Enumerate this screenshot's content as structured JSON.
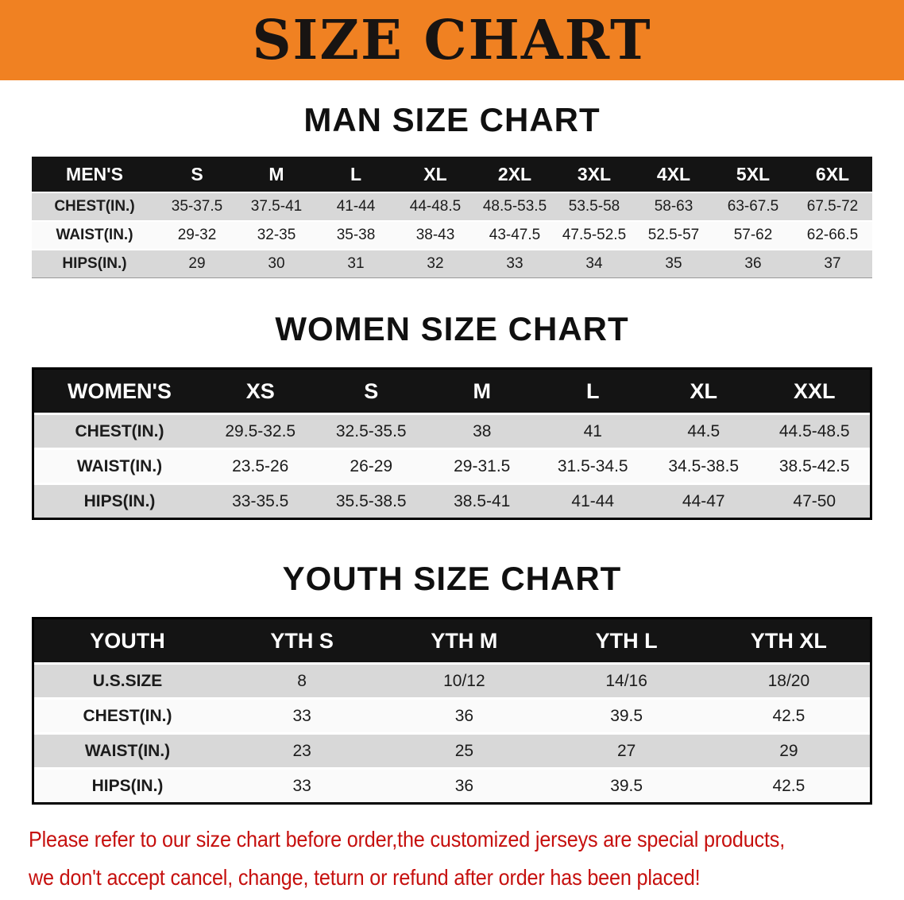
{
  "banner": {
    "title": "SIZE CHART"
  },
  "chart_data": [
    {
      "type": "table",
      "title": "MAN SIZE CHART",
      "header": [
        "MEN'S",
        "S",
        "M",
        "L",
        "XL",
        "2XL",
        "3XL",
        "4XL",
        "5XL",
        "6XL"
      ],
      "rows": [
        {
          "label": "CHEST(IN.)",
          "values": [
            "35-37.5",
            "37.5-41",
            "41-44",
            "44-48.5",
            "48.5-53.5",
            "53.5-58",
            "58-63",
            "63-67.5",
            "67.5-72"
          ]
        },
        {
          "label": "WAIST(IN.)",
          "values": [
            "29-32",
            "32-35",
            "35-38",
            "38-43",
            "43-47.5",
            "47.5-52.5",
            "52.5-57",
            "57-62",
            "62-66.5"
          ]
        },
        {
          "label": "HIPS(IN.)",
          "values": [
            "29",
            "30",
            "31",
            "32",
            "33",
            "34",
            "35",
            "36",
            "37"
          ]
        }
      ]
    },
    {
      "type": "table",
      "title": "WOMEN SIZE CHART",
      "header": [
        "WOMEN'S",
        "XS",
        "S",
        "M",
        "L",
        "XL",
        "XXL"
      ],
      "rows": [
        {
          "label": "CHEST(IN.)",
          "values": [
            "29.5-32.5",
            "32.5-35.5",
            "38",
            "41",
            "44.5",
            "44.5-48.5"
          ]
        },
        {
          "label": "WAIST(IN.)",
          "values": [
            "23.5-26",
            "26-29",
            "29-31.5",
            "31.5-34.5",
            "34.5-38.5",
            "38.5-42.5"
          ]
        },
        {
          "label": "HIPS(IN.)",
          "values": [
            "33-35.5",
            "35.5-38.5",
            "38.5-41",
            "41-44",
            "44-47",
            "47-50"
          ]
        }
      ]
    },
    {
      "type": "table",
      "title": "YOUTH SIZE CHART",
      "header": [
        "YOUTH",
        "YTH S",
        "YTH M",
        "YTH L",
        "YTH XL"
      ],
      "rows": [
        {
          "label": "U.S.SIZE",
          "values": [
            "8",
            "10/12",
            "14/16",
            "18/20"
          ]
        },
        {
          "label": "CHEST(IN.)",
          "values": [
            "33",
            "36",
            "39.5",
            "42.5"
          ]
        },
        {
          "label": "WAIST(IN.)",
          "values": [
            "23",
            "25",
            "27",
            "29"
          ]
        },
        {
          "label": "HIPS(IN.)",
          "values": [
            "33",
            "36",
            "39.5",
            "42.5"
          ]
        }
      ]
    }
  ],
  "disclaimer": {
    "line1": "Please refer to our size chart before order,the customized jerseys are special products,",
    "line2": "we don't accept cancel, change, teturn or refund after order has been placed!"
  },
  "colors": {
    "banner_bg": "#f08122",
    "table_header_bg": "#141414",
    "row_gray": "#d8d8d8",
    "row_light": "#fafafa",
    "table_border": "#000000",
    "disclaimer_text": "#c6100e"
  }
}
